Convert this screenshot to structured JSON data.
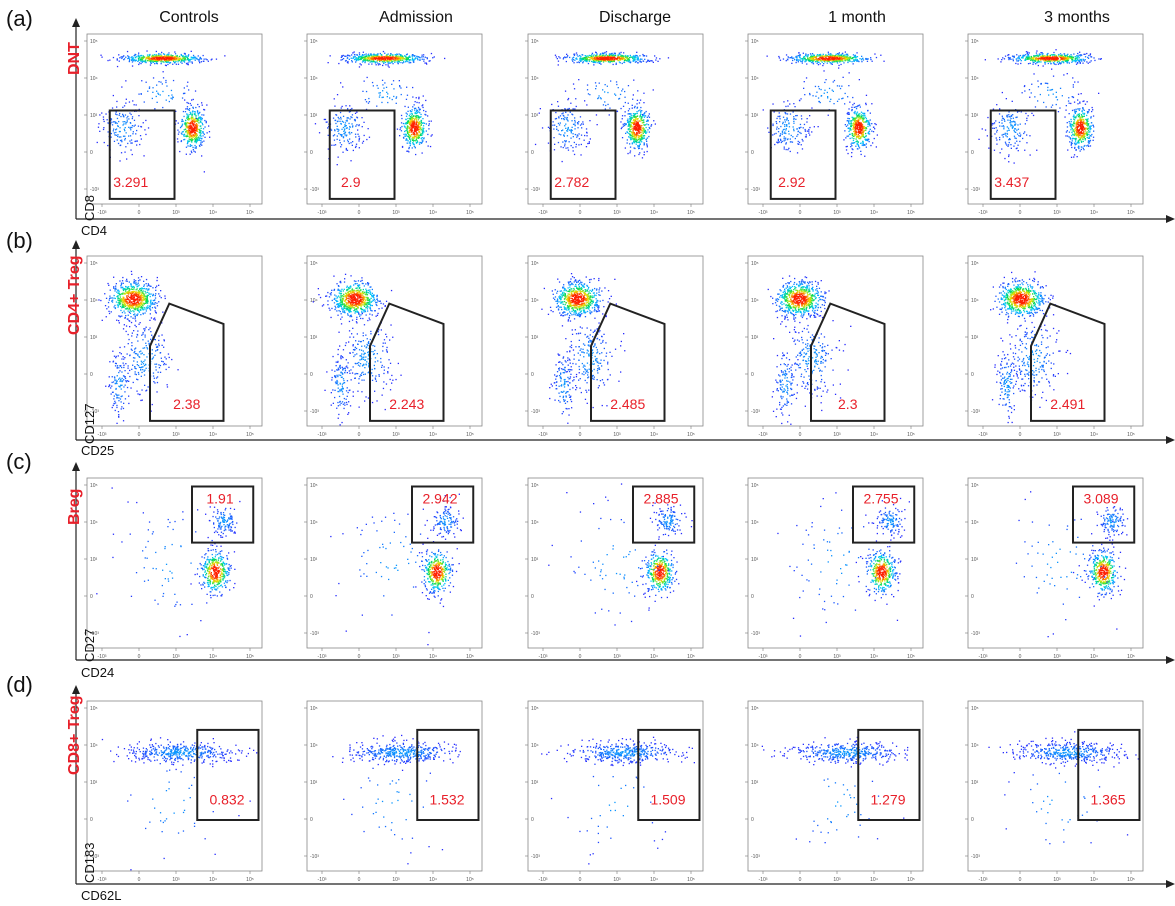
{
  "chart_data": {
    "type": "scatter",
    "description_style": "flow cytometry density dot plots, log-like axes",
    "columns": [
      "Controls",
      "Admission",
      "Discharge",
      "1 month",
      "3 months"
    ],
    "tick_labels": [
      "-10³",
      "0",
      "10³",
      "10⁴",
      "10⁵"
    ],
    "rows": [
      {
        "panel": "(a)",
        "population": "DNT",
        "xlabel": "CD4",
        "ylabel": "CD8",
        "gate_percentages": [
          "3.291",
          "2.9",
          "2.782",
          "2.92",
          "3.437"
        ]
      },
      {
        "panel": "(b)",
        "population": "CD4+ Treg",
        "xlabel": "CD25",
        "ylabel": "CD127",
        "gate_percentages": [
          "2.38",
          "2.243",
          "2.485",
          "2.3",
          "2.491"
        ]
      },
      {
        "panel": "(c)",
        "population": "Breg",
        "xlabel": "CD24",
        "ylabel": "CD27",
        "gate_percentages": [
          "1.91",
          "2.942",
          "2.885",
          "2.755",
          "3.089"
        ]
      },
      {
        "panel": "(d)",
        "population": "CD8+ Treg",
        "xlabel": "CD62L",
        "ylabel": "CD183",
        "gate_percentages": [
          "0.832",
          "1.532",
          "1.509",
          "1.279",
          "1.365"
        ]
      }
    ],
    "colors": {
      "label_red": "#e8202a",
      "gate": "#222222",
      "density_low": "#1a1aff",
      "density_high": "#ff2000"
    }
  }
}
